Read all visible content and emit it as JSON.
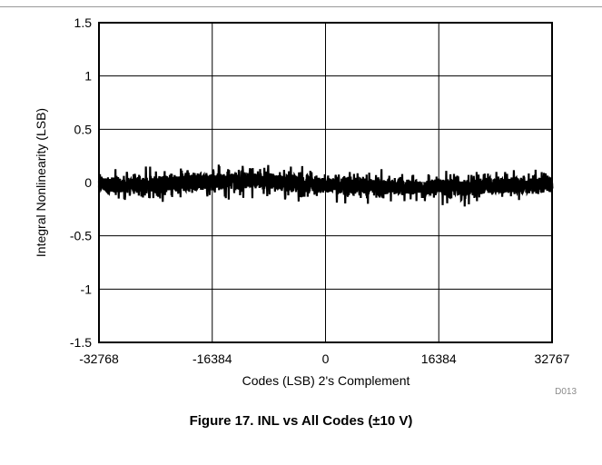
{
  "figure": {
    "caption": "Figure 17. INL vs All Codes (±10 V)",
    "tag": "D013"
  },
  "chart_data": {
    "type": "line",
    "xlabel": "Codes (LSB) 2's Complement",
    "ylabel": "Integral Nonlinearity (LSB)",
    "xlim": [
      -32768,
      32767
    ],
    "ylim": [
      -1.5,
      1.5
    ],
    "x_ticks": [
      -32768,
      -16384,
      0,
      16384,
      32767
    ],
    "x_tick_labels": [
      "-32768",
      "-16384",
      "0",
      "16384",
      "32767"
    ],
    "y_ticks": [
      1.5,
      1,
      0.5,
      0,
      -0.5,
      -1,
      -1.5
    ],
    "y_tick_labels": [
      "1.5",
      "1",
      "0.5",
      "0",
      "-0.5",
      "-1",
      "-1.5"
    ],
    "grid": true,
    "series_color": "#000000",
    "series": [
      {
        "x": [
          -32768,
          -28672,
          -24576,
          -20480,
          -16384,
          -12288,
          -8192,
          -4096,
          0,
          4096,
          8192,
          12288,
          16384,
          20480,
          24576,
          28672,
          32767
        ],
        "y_max": [
          0.16,
          0.14,
          0.16,
          0.2,
          0.2,
          0.2,
          0.19,
          0.18,
          0.15,
          0.14,
          0.13,
          0.12,
          0.12,
          0.13,
          0.15,
          0.15,
          0.14
        ],
        "y_min": [
          -0.19,
          -0.21,
          -0.2,
          -0.19,
          -0.18,
          -0.16,
          -0.16,
          -0.2,
          -0.19,
          -0.2,
          -0.2,
          -0.22,
          -0.21,
          -0.23,
          -0.21,
          -0.21,
          -0.18
        ]
      }
    ]
  }
}
